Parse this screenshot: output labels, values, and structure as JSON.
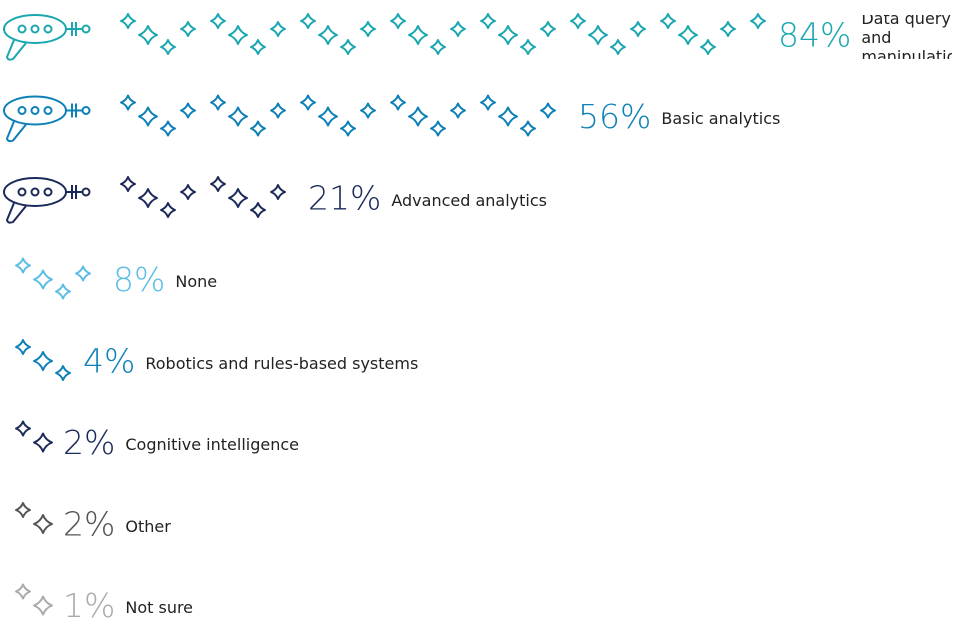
{
  "chart_data": {
    "type": "pictograph",
    "categories": [
      "Data query and manipulation",
      "Basic analytics",
      "Advanced analytics",
      "None",
      "Robotics and rules-based systems",
      "Cognitive intelligence",
      "Other",
      "Not sure"
    ],
    "values": [
      84,
      56,
      21,
      8,
      4,
      2,
      2,
      1
    ],
    "value_labels": [
      "84%",
      "56%",
      "21%",
      "8%",
      "4%",
      "2%",
      "2%",
      "1%"
    ],
    "colors": [
      "#1aa7b0",
      "#0d80b8",
      "#1c2a5a",
      "#5bbde6",
      "#0d80b8",
      "#1c2a5a",
      "#555555",
      "#aaaaaa"
    ]
  }
}
